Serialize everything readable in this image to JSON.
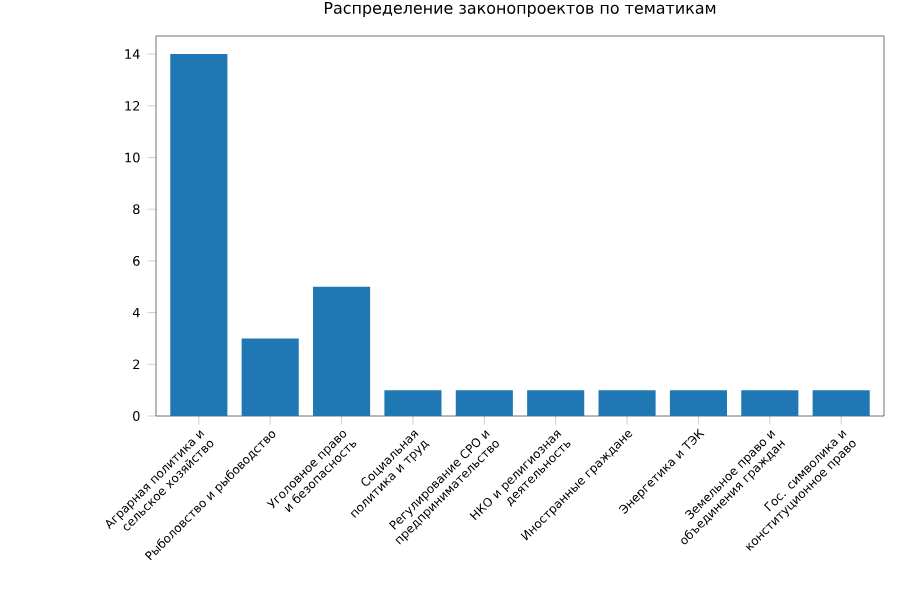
{
  "chart_data": {
    "type": "bar",
    "title": "Распределение законопроектов по тематикам",
    "categories": [
      "Аграрная политика и сельское хозяйство",
      "Рыболовство и рыбоводство",
      "Уголовное право и безопасность",
      "Социальная политика и труд",
      "Регулирование СРО и предпринимательство",
      "НКО и религиозная деятельность",
      "Иностранные граждане",
      "Энергетика и ТЭК",
      "Земельное право и объединения граждан",
      "Гос. символика и конституционное право"
    ],
    "values": [
      14,
      3,
      5,
      1,
      1,
      1,
      1,
      1,
      1,
      1
    ],
    "color": "#1f77b4",
    "ylim": [
      0,
      14.7
    ],
    "yticks": [
      0,
      2,
      4,
      6,
      8,
      10,
      12,
      14
    ],
    "grid": false
  }
}
